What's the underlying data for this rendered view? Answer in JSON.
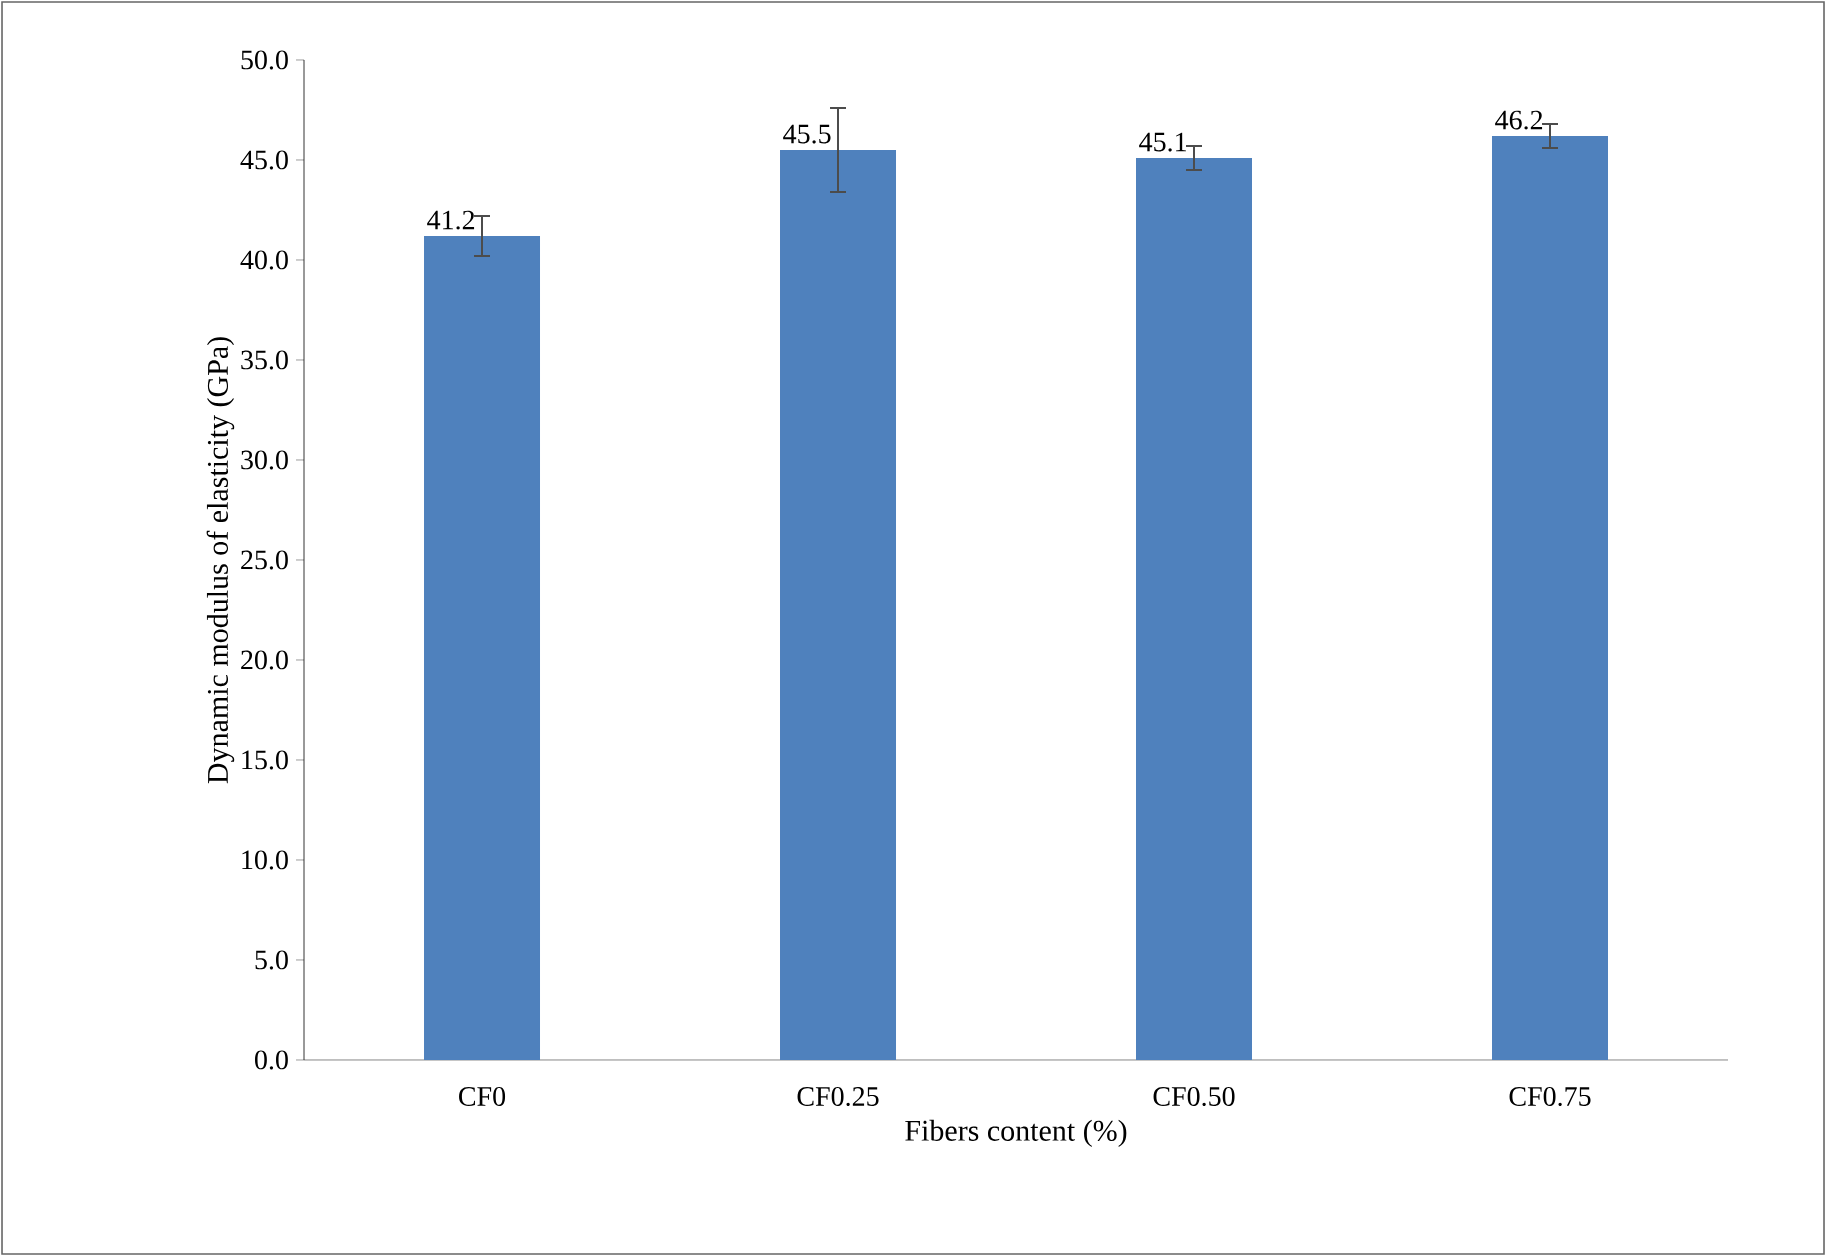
{
  "chart_data": {
    "type": "bar",
    "xlabel": "Fibers content (%)",
    "ylabel": "Dynamic modulus of elasticity (GPa)",
    "categories": [
      "CF0",
      "CF0.25",
      "CF0.50",
      "CF0.75"
    ],
    "values": [
      41.2,
      45.5,
      45.1,
      46.2
    ],
    "errors": [
      1.0,
      2.1,
      0.6,
      0.6
    ],
    "color": "#4f81bd",
    "ylim": [
      0,
      50
    ],
    "yticks": [
      {
        "value": 0,
        "label": "0.0"
      },
      {
        "value": 5,
        "label": "5.0"
      },
      {
        "value": 10,
        "label": "10.0"
      },
      {
        "value": 15,
        "label": "15.0"
      },
      {
        "value": 20,
        "label": "20.0"
      },
      {
        "value": 25,
        "label": "25.0"
      },
      {
        "value": 30,
        "label": "30.0"
      },
      {
        "value": 35,
        "label": "35.0"
      },
      {
        "value": 40,
        "label": "40.0"
      },
      {
        "value": 45,
        "label": "45.0"
      },
      {
        "value": 50,
        "label": "50.0"
      }
    ],
    "data_labels": true
  }
}
